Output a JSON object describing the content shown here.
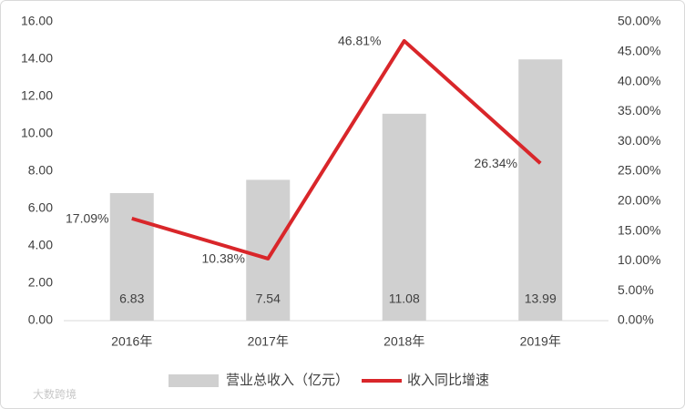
{
  "chart_data": {
    "type": "bar-line",
    "categories": [
      "2016年",
      "2017年",
      "2018年",
      "2019年"
    ],
    "series": [
      {
        "name": "营业总收入（亿元）",
        "color": "#d0d0d0",
        "type": "bar",
        "values": [
          6.83,
          7.54,
          11.08,
          13.99
        ]
      },
      {
        "name": "收入同比增速",
        "color": "#d9262a",
        "type": "line",
        "axis": "y2",
        "values": [
          17.09,
          10.38,
          46.81,
          26.34
        ],
        "value_labels": [
          "17.09%",
          "10.38%",
          "46.81%",
          "26.34%"
        ]
      }
    ],
    "ylim": [
      0,
      16
    ],
    "yticks": [
      {
        "value": 0,
        "label": "0.00"
      },
      {
        "value": 2,
        "label": "2.00"
      },
      {
        "value": 4,
        "label": "4.00"
      },
      {
        "value": 6,
        "label": "6.00"
      },
      {
        "value": 8,
        "label": "8.00"
      },
      {
        "value": 10,
        "label": "10.00"
      },
      {
        "value": 12,
        "label": "12.00"
      },
      {
        "value": 14,
        "label": "14.00"
      },
      {
        "value": 16,
        "label": "16.00"
      }
    ],
    "y2lim": [
      0,
      50
    ],
    "y2ticks": [
      {
        "value": 0,
        "label": "0.00%"
      },
      {
        "value": 5,
        "label": "5.00%"
      },
      {
        "value": 10,
        "label": "10.00%"
      },
      {
        "value": 15,
        "label": "15.00%"
      },
      {
        "value": 20,
        "label": "20.00%"
      },
      {
        "value": 25,
        "label": "25.00%"
      },
      {
        "value": 30,
        "label": "30.00%"
      },
      {
        "value": 35,
        "label": "35.00%"
      },
      {
        "value": 40,
        "label": "40.00%"
      },
      {
        "value": 45,
        "label": "45.00%"
      },
      {
        "value": 50,
        "label": "50.00%"
      }
    ],
    "grid": false,
    "legend": "bottom",
    "watermark": "大数跨境"
  }
}
